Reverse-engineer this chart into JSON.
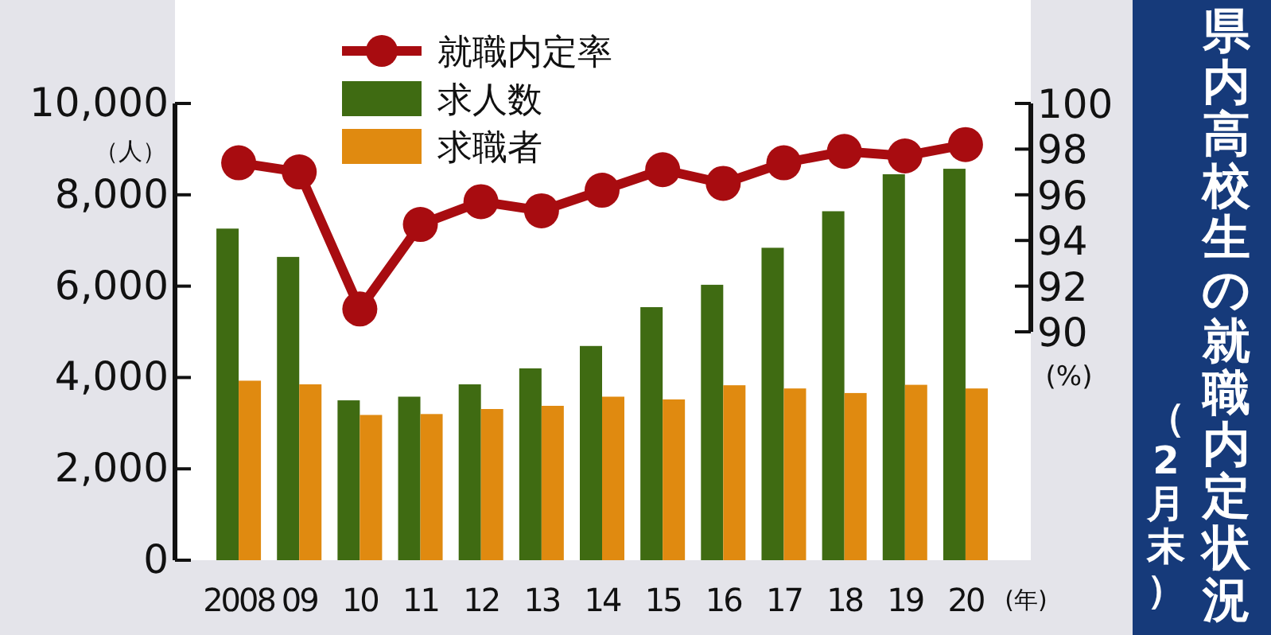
{
  "chart_data": {
    "type": "bar",
    "title": "県内高校生の就職内定状況",
    "subtitle": "（2月末）",
    "ylabel": "（人）",
    "y2label": "(%)",
    "xlabel": "(年)",
    "categories": [
      "2008",
      "09",
      "10",
      "11",
      "12",
      "13",
      "14",
      "15",
      "16",
      "17",
      "18",
      "19",
      "20"
    ],
    "series": [
      {
        "name": "就職内定率",
        "type": "line",
        "axis": "y2",
        "color": "#a80c10",
        "marker": "circle",
        "values": [
          97.4,
          97.0,
          91.0,
          94.7,
          95.7,
          95.3,
          96.2,
          97.1,
          96.5,
          97.4,
          97.9,
          97.7,
          98.2
        ]
      },
      {
        "name": "求人数",
        "color": "#3f6b12",
        "values": [
          7260,
          6640,
          3500,
          3580,
          3850,
          4200,
          4690,
          5540,
          6030,
          6840,
          7640,
          8450,
          8570
        ]
      },
      {
        "name": "求職者",
        "color": "#e08a10",
        "values": [
          3930,
          3850,
          3180,
          3200,
          3310,
          3380,
          3580,
          3520,
          3830,
          3760,
          3660,
          3840,
          3760
        ]
      }
    ],
    "ylim": [
      0,
      10000
    ],
    "yticks": [
      {
        "value": 0,
        "label": "0"
      },
      {
        "value": 2000,
        "label": "2,000"
      },
      {
        "value": 4000,
        "label": "4,000"
      },
      {
        "value": 6000,
        "label": "6,000"
      },
      {
        "value": 8000,
        "label": "8,000"
      },
      {
        "value": 10000,
        "label": "10,000"
      }
    ],
    "y2lim": [
      80,
      100
    ],
    "y2ticks": [
      90,
      92,
      94,
      96,
      98,
      100
    ],
    "legend": "top",
    "grid": false
  }
}
